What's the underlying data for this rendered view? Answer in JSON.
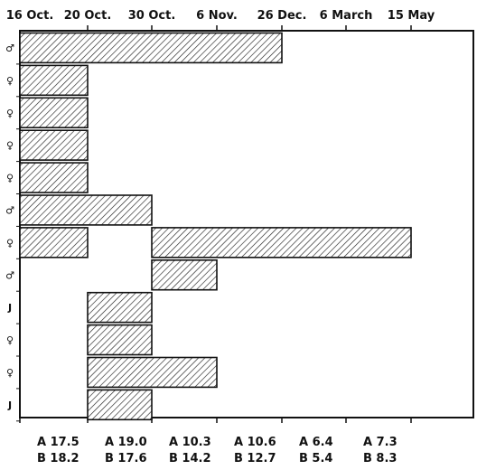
{
  "chart_data": {
    "type": "bar",
    "orientation": "horizontal",
    "pattern": "diagonal-hatch",
    "pattern_color": "#222222",
    "x_ticks": [
      "16 Oct.",
      "20 Oct.",
      "30 Oct.",
      "6 Nov.",
      "26 Dec.",
      "6 March",
      "15 May"
    ],
    "rows": [
      {
        "label": "♂",
        "bars": [
          [
            0,
            4
          ]
        ]
      },
      {
        "label": "♀",
        "bars": [
          [
            0,
            1
          ]
        ]
      },
      {
        "label": "♀",
        "bars": [
          [
            0,
            1
          ]
        ]
      },
      {
        "label": "♀",
        "bars": [
          [
            0,
            1
          ]
        ]
      },
      {
        "label": "♀",
        "bars": [
          [
            0,
            1
          ]
        ]
      },
      {
        "label": "♂",
        "bars": [
          [
            0,
            2
          ]
        ]
      },
      {
        "label": "♀",
        "bars": [
          [
            0,
            1
          ],
          [
            2,
            6
          ]
        ]
      },
      {
        "label": "♂",
        "bars": [
          [
            2,
            3
          ]
        ]
      },
      {
        "label": "J",
        "bars": [
          [
            1,
            2
          ]
        ]
      },
      {
        "label": "♀",
        "bars": [
          [
            1,
            2
          ]
        ]
      },
      {
        "label": "♀",
        "bars": [
          [
            1,
            3
          ]
        ]
      },
      {
        "label": "J",
        "bars": [
          [
            1,
            2
          ]
        ]
      }
    ],
    "footer": [
      {
        "a": "A 17.5",
        "b": "B 18.2"
      },
      {
        "a": "A 19.0",
        "b": "B 17.6"
      },
      {
        "a": "A 10.3",
        "b": "B 14.2"
      },
      {
        "a": "A 10.6",
        "b": "B 12.7"
      },
      {
        "a": "A 6.4",
        "b": "B 5.4"
      },
      {
        "a": "A 7.3",
        "b": "B 8.3"
      }
    ]
  }
}
